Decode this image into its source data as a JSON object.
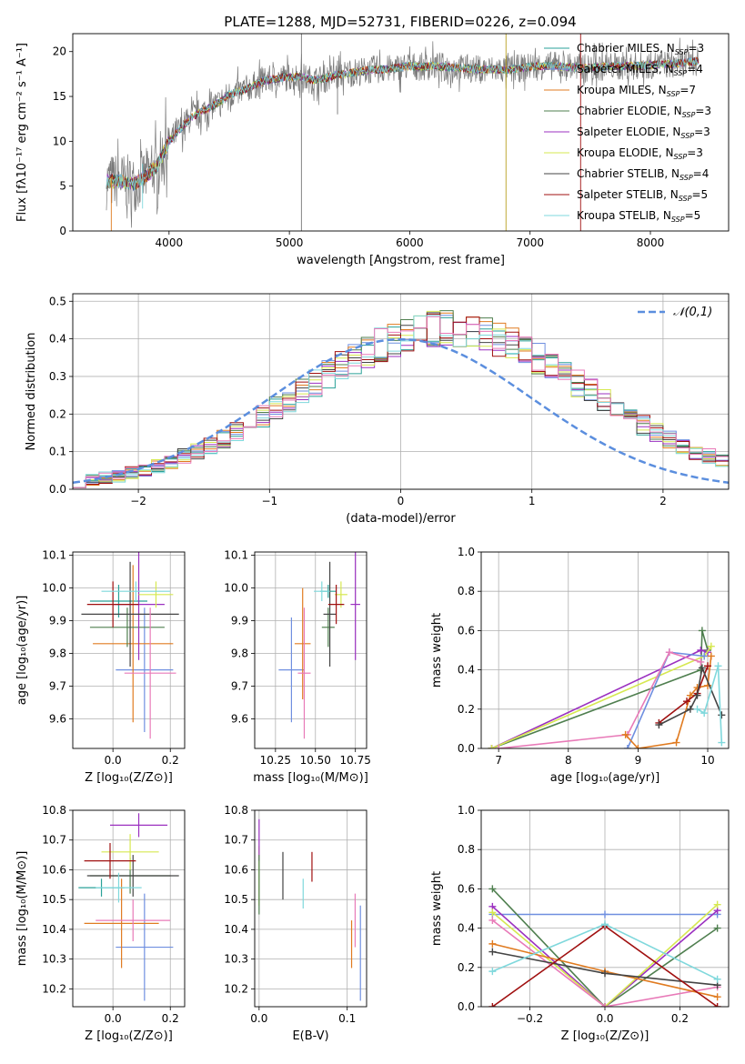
{
  "figure": {
    "title": "PLATE=1288, MJD=52731, FIBERID=0226, z=0.094"
  },
  "colors": {
    "Chabrier MILES": "#2aa198",
    "Salpeter MILES": "#6f8fe0",
    "Kroupa MILES": "#e07b20",
    "Chabrier ELODIE": "#4f7f4f",
    "Salpeter ELODIE": "#9b30c0",
    "Kroupa ELODIE": "#d6e850",
    "Chabrier STELIB": "#444444",
    "Salpeter STELIB": "#a01010",
    "Kroupa STELIB": "#7fd8dc",
    "pink": "#e87ab8",
    "normal": "#5b8ede"
  },
  "chart_data": [
    {
      "id": "spectrum",
      "type": "line",
      "title": "PLATE=1288, MJD=52731, FIBERID=0226, z=0.094",
      "xlabel": "wavelength [Angstrom, rest frame]",
      "ylabel": "Flux [fλ10⁻¹⁷ erg cm⁻² s⁻¹ A⁻¹]",
      "xlim": [
        3200,
        8650
      ],
      "ylim": [
        0,
        22
      ],
      "xticks": [
        4000,
        5000,
        6000,
        7000,
        8000
      ],
      "yticks": [
        0,
        5,
        10,
        15,
        20
      ],
      "grid": false,
      "legend_position": "top-right",
      "legend": [
        {
          "name": "Chabrier MILES, N",
          "sub": "SSP",
          "tail": "=3",
          "color": "#2aa198"
        },
        {
          "name": "Salpeter MILES, N",
          "sub": "SSP",
          "tail": "=4",
          "color": "#6f8fe0"
        },
        {
          "name": "Kroupa MILES, N",
          "sub": "SSP",
          "tail": "=7",
          "color": "#e07b20"
        },
        {
          "name": "Chabrier ELODIE, N",
          "sub": "SSP",
          "tail": "=3",
          "color": "#4f7f4f"
        },
        {
          "name": "Salpeter ELODIE, N",
          "sub": "SSP",
          "tail": "=3",
          "color": "#9b30c0"
        },
        {
          "name": "Kroupa ELODIE, N",
          "sub": "SSP",
          "tail": "=3",
          "color": "#d6e850"
        },
        {
          "name": "Chabrier STELIB, N",
          "sub": "SSP",
          "tail": "=4",
          "color": "#444444"
        },
        {
          "name": "Salpeter STELIB, N",
          "sub": "SSP",
          "tail": "=5",
          "color": "#a01010"
        },
        {
          "name": "Kroupa STELIB, N",
          "sub": "SSP",
          "tail": "=5",
          "color": "#7fd8dc"
        }
      ],
      "continuum": {
        "x": [
          3480,
          3600,
          3700,
          3800,
          3900,
          4000,
          4100,
          4200,
          4300,
          4400,
          4500,
          4600,
          4700,
          4800,
          4900,
          5000,
          5100,
          5200,
          5300,
          5400,
          5500,
          5600,
          5700,
          5800,
          5900,
          6000,
          6100,
          6200,
          6300,
          6400,
          6500,
          6600,
          6700,
          6800,
          6900,
          7000,
          7100,
          7200,
          7300,
          7400,
          7500,
          7600,
          7700,
          7800,
          7900,
          8000,
          8100,
          8200,
          8300,
          8400
        ],
        "y": [
          5.5,
          5.6,
          5.2,
          6.0,
          7.2,
          10.0,
          11.5,
          12.8,
          13.5,
          14.2,
          15.2,
          15.6,
          16.2,
          16.8,
          17.0,
          17.2,
          17.2,
          16.8,
          17.0,
          17.4,
          17.6,
          17.8,
          18.0,
          18.0,
          18.2,
          18.4,
          18.3,
          18.4,
          18.3,
          18.2,
          18.1,
          18.0,
          18.0,
          18.0,
          18.1,
          18.3,
          18.4,
          18.4,
          18.3,
          18.2,
          18.2,
          18.3,
          18.4,
          18.4,
          18.4,
          18.5,
          18.6,
          18.6,
          18.8,
          18.9
        ]
      },
      "spikes": [
        {
          "x": 5100,
          "y0": 0,
          "y1": 22,
          "color": "#777777"
        },
        {
          "x": 6800,
          "y0": 0,
          "y1": 22,
          "color": "#b8a020"
        },
        {
          "x": 7420,
          "y0": 0,
          "y1": 22,
          "color": "#a01010"
        },
        {
          "x": 3520,
          "y0": 0,
          "y1": 6,
          "color": "#e07b20"
        },
        {
          "x": 3780,
          "y0": 2.5,
          "y1": 7.5,
          "color": "#7fd8dc"
        },
        {
          "x": 5400,
          "y0": 13,
          "y1": 19,
          "color": "#777777"
        }
      ]
    },
    {
      "id": "residuals",
      "type": "bar",
      "xlabel": "(data-model)/error",
      "ylabel": "Normed distribution",
      "xlim": [
        -2.5,
        2.5
      ],
      "ylim": [
        0,
        0.52
      ],
      "xticks": [
        -2,
        -1,
        0,
        1,
        2
      ],
      "yticks": [
        0.0,
        0.1,
        0.2,
        0.3,
        0.4,
        0.5
      ],
      "grid": true,
      "legend_position": "top-right",
      "bin_width": 0.1,
      "bin_start": -2.5,
      "base_heights": [
        0.02,
        0.024,
        0.03,
        0.036,
        0.043,
        0.052,
        0.062,
        0.074,
        0.087,
        0.101,
        0.117,
        0.134,
        0.152,
        0.172,
        0.193,
        0.214,
        0.236,
        0.259,
        0.282,
        0.304,
        0.326,
        0.347,
        0.366,
        0.384,
        0.399,
        0.411,
        0.42,
        0.425,
        0.427,
        0.425,
        0.42,
        0.411,
        0.399,
        0.384,
        0.366,
        0.347,
        0.326,
        0.304,
        0.282,
        0.259,
        0.236,
        0.214,
        0.193,
        0.172,
        0.152,
        0.134,
        0.117,
        0.101,
        0.087,
        0.074
      ],
      "normal_curve": {
        "name": "𝒩(0,1)",
        "mean": 0,
        "sigma": 1
      }
    },
    {
      "id": "age-vs-Z",
      "type": "scatter",
      "xlabel": "Z [log₁₀(Z/Z⊙)]",
      "ylabel": "age  [log₁₀(age/yr)]",
      "xlim": [
        -0.14,
        0.25
      ],
      "ylim": [
        9.51,
        10.11
      ],
      "xticks": [
        0.0,
        0.2
      ],
      "yticks": [
        9.6,
        9.7,
        9.8,
        9.9,
        10.0,
        10.1
      ],
      "grid": true,
      "points": [
        {
          "x": 0.02,
          "y": 9.96,
          "xerr": 0.1,
          "yerr": 0.05,
          "color": "#2aa198"
        },
        {
          "x": 0.11,
          "y": 9.75,
          "xerr": 0.1,
          "yerr": 0.19,
          "color": "#6f8fe0"
        },
        {
          "x": 0.07,
          "y": 9.83,
          "xerr": 0.14,
          "yerr": 0.24,
          "color": "#e07b20"
        },
        {
          "x": 0.05,
          "y": 9.88,
          "xerr": 0.13,
          "yerr": 0.06,
          "color": "#4f7f4f"
        },
        {
          "x": 0.09,
          "y": 9.95,
          "xerr": 0.09,
          "yerr": 0.17,
          "color": "#9b30c0"
        },
        {
          "x": 0.15,
          "y": 9.98,
          "xerr": 0.06,
          "yerr": 0.04,
          "color": "#d6e850"
        },
        {
          "x": 0.06,
          "y": 9.92,
          "xerr": 0.17,
          "yerr": 0.16,
          "color": "#444444"
        },
        {
          "x": 0.0,
          "y": 9.95,
          "xerr": 0.09,
          "yerr": 0.07,
          "color": "#a01010"
        },
        {
          "x": 0.08,
          "y": 9.99,
          "xerr": 0.12,
          "yerr": 0.03,
          "color": "#7fd8dc"
        },
        {
          "x": 0.13,
          "y": 9.74,
          "xerr": 0.09,
          "yerr": 0.2,
          "color": "#e87ab8"
        }
      ]
    },
    {
      "id": "age-vs-mass",
      "type": "scatter",
      "xlabel": "mass [log₁₀(M/M⊙)]",
      "ylabel": "",
      "xlim": [
        10.12,
        10.82
      ],
      "ylim": [
        9.51,
        10.11
      ],
      "xticks": [
        10.25,
        10.5,
        10.75
      ],
      "yticks": [
        9.6,
        9.7,
        9.8,
        9.9,
        10.0,
        10.1
      ],
      "grid": true,
      "points": [
        {
          "x": 10.58,
          "y": 9.99,
          "xerr": 0.05,
          "yerr": 0.02,
          "color": "#2aa198"
        },
        {
          "x": 10.35,
          "y": 9.75,
          "xerr": 0.08,
          "yerr": 0.16,
          "color": "#6f8fe0"
        },
        {
          "x": 10.42,
          "y": 9.83,
          "xerr": 0.05,
          "yerr": 0.17,
          "color": "#e07b20"
        },
        {
          "x": 10.58,
          "y": 9.88,
          "xerr": 0.04,
          "yerr": 0.06,
          "color": "#4f7f4f"
        },
        {
          "x": 10.75,
          "y": 9.95,
          "xerr": 0.03,
          "yerr": 0.17,
          "color": "#9b30c0"
        },
        {
          "x": 10.66,
          "y": 9.98,
          "xerr": 0.04,
          "yerr": 0.04,
          "color": "#d6e850"
        },
        {
          "x": 10.59,
          "y": 9.92,
          "xerr": 0.04,
          "yerr": 0.16,
          "color": "#444444"
        },
        {
          "x": 10.63,
          "y": 9.95,
          "xerr": 0.05,
          "yerr": 0.06,
          "color": "#a01010"
        },
        {
          "x": 10.54,
          "y": 9.99,
          "xerr": 0.05,
          "yerr": 0.03,
          "color": "#7fd8dc"
        },
        {
          "x": 10.43,
          "y": 9.74,
          "xerr": 0.04,
          "yerr": 0.2,
          "color": "#e87ab8"
        }
      ]
    },
    {
      "id": "weight-vs-age",
      "type": "line",
      "xlabel": "age  [log₁₀(age/yr)]",
      "ylabel": "mass weight",
      "xlim": [
        6.75,
        10.3
      ],
      "ylim": [
        0.0,
        1.0
      ],
      "xticks": [
        7,
        8,
        9,
        10
      ],
      "yticks": [
        0.0,
        0.2,
        0.4,
        0.6,
        0.8,
        1.0
      ],
      "grid": true,
      "series": [
        {
          "color": "#4f7f4f",
          "x": [
            6.9,
            9.9,
            9.92,
            10.0
          ],
          "y": [
            0.0,
            0.4,
            0.6,
            0.5
          ]
        },
        {
          "color": "#9b30c0",
          "x": [
            6.9,
            9.9,
            10.0
          ],
          "y": [
            0.0,
            0.5,
            0.49
          ]
        },
        {
          "color": "#d6e850",
          "x": [
            6.9,
            9.95,
            10.05
          ],
          "y": [
            0.0,
            0.47,
            0.52
          ]
        },
        {
          "color": "#6f8fe0",
          "x": [
            8.85,
            9.45,
            9.95
          ],
          "y": [
            0.0,
            0.49,
            0.47
          ]
        },
        {
          "color": "#e87ab8",
          "x": [
            7.0,
            8.85,
            9.45,
            9.9
          ],
          "y": [
            0.0,
            0.07,
            0.49,
            0.44
          ]
        },
        {
          "color": "#e07b20",
          "x": [
            8.82,
            9.0,
            9.55,
            9.75,
            9.85,
            10.0,
            10.05
          ],
          "y": [
            0.07,
            0.0,
            0.03,
            0.27,
            0.31,
            0.32,
            0.47
          ]
        },
        {
          "color": "#a01010",
          "x": [
            9.3,
            9.7,
            9.85,
            10.0
          ],
          "y": [
            0.13,
            0.24,
            0.28,
            0.42
          ]
        },
        {
          "color": "#444444",
          "x": [
            9.3,
            9.75,
            9.85,
            9.92,
            10.2
          ],
          "y": [
            0.12,
            0.2,
            0.27,
            0.41,
            0.17
          ]
        },
        {
          "color": "#7fd8dc",
          "x": [
            9.85,
            9.95,
            10.15,
            10.2
          ],
          "y": [
            0.2,
            0.18,
            0.42,
            0.03
          ]
        }
      ]
    },
    {
      "id": "mass-vs-Z",
      "type": "scatter",
      "xlabel": "Z [log₁₀(Z/Z⊙)]",
      "ylabel": "mass [log₁₀(M/M⊙)]",
      "xlim": [
        -0.14,
        0.25
      ],
      "ylim": [
        10.14,
        10.8
      ],
      "xticks": [
        0.0,
        0.2
      ],
      "yticks": [
        10.2,
        10.3,
        10.4,
        10.5,
        10.6,
        10.7,
        10.8
      ],
      "grid": true,
      "points": [
        {
          "x": -0.04,
          "y": 10.54,
          "xerr": 0.08,
          "yerr": 0.03,
          "color": "#2aa198"
        },
        {
          "x": 0.11,
          "y": 10.34,
          "xerr": 0.1,
          "yerr": 0.18,
          "color": "#6f8fe0"
        },
        {
          "x": 0.03,
          "y": 10.42,
          "xerr": 0.13,
          "yerr": 0.15,
          "color": "#e07b20"
        },
        {
          "x": 0.06,
          "y": 10.58,
          "xerr": 0.14,
          "yerr": 0.06,
          "color": "#4f7f4f"
        },
        {
          "x": 0.09,
          "y": 10.75,
          "xerr": 0.1,
          "yerr": 0.04,
          "color": "#9b30c0"
        },
        {
          "x": 0.06,
          "y": 10.66,
          "xerr": 0.1,
          "yerr": 0.06,
          "color": "#d6e850"
        },
        {
          "x": 0.07,
          "y": 10.58,
          "xerr": 0.16,
          "yerr": 0.07,
          "color": "#444444"
        },
        {
          "x": -0.01,
          "y": 10.63,
          "xerr": 0.09,
          "yerr": 0.06,
          "color": "#a01010"
        },
        {
          "x": 0.02,
          "y": 10.54,
          "xerr": 0.08,
          "yerr": 0.05,
          "color": "#7fd8dc"
        },
        {
          "x": 0.07,
          "y": 10.43,
          "xerr": 0.13,
          "yerr": 0.07,
          "color": "#e87ab8"
        }
      ]
    },
    {
      "id": "mass-vs-ebv",
      "type": "scatter",
      "xlabel": "E(B-V)",
      "ylabel": "",
      "xlim": [
        -0.005,
        0.122
      ],
      "ylim": [
        10.14,
        10.8
      ],
      "xticks": [
        0.0,
        0.1
      ],
      "yticks": [
        10.2,
        10.3,
        10.4,
        10.5,
        10.6,
        10.7,
        10.8
      ],
      "grid": true,
      "points": [
        {
          "x": 0.0,
          "y": 10.58,
          "yerr": 0.1,
          "color": "#d6e850"
        },
        {
          "x": 0.0,
          "y": 10.7,
          "yerr": 0.07,
          "color": "#9b30c0"
        },
        {
          "x": 0.0,
          "y": 10.55,
          "yerr": 0.1,
          "color": "#4f7f4f"
        },
        {
          "x": 0.027,
          "y": 10.58,
          "yerr": 0.08,
          "color": "#444444"
        },
        {
          "x": 0.05,
          "y": 10.52,
          "yerr": 0.05,
          "color": "#7fd8dc"
        },
        {
          "x": 0.06,
          "y": 10.61,
          "yerr": 0.05,
          "color": "#a01010"
        },
        {
          "x": 0.105,
          "y": 10.35,
          "yerr": 0.08,
          "color": "#e07b20"
        },
        {
          "x": 0.109,
          "y": 10.43,
          "yerr": 0.09,
          "color": "#e87ab8"
        },
        {
          "x": 0.115,
          "y": 10.32,
          "yerr": 0.16,
          "color": "#6f8fe0"
        }
      ]
    },
    {
      "id": "weight-vs-Z",
      "type": "line",
      "xlabel": "Z [log₁₀(Z/Z⊙)]",
      "ylabel": "mass weight",
      "xlim": [
        -0.33,
        0.33
      ],
      "ylim": [
        0.0,
        1.0
      ],
      "xticks": [
        -0.2,
        0.0,
        0.2
      ],
      "yticks": [
        0.0,
        0.2,
        0.4,
        0.6,
        0.8,
        1.0
      ],
      "grid": true,
      "series": [
        {
          "color": "#6f8fe0",
          "x": [
            -0.3,
            0.0,
            0.3
          ],
          "y": [
            0.47,
            0.47,
            0.47
          ]
        },
        {
          "color": "#4f7f4f",
          "x": [
            -0.3,
            0.0,
            0.3
          ],
          "y": [
            0.6,
            0.0,
            0.4
          ]
        },
        {
          "color": "#9b30c0",
          "x": [
            -0.3,
            0.0,
            0.3
          ],
          "y": [
            0.51,
            0.0,
            0.49
          ]
        },
        {
          "color": "#d6e850",
          "x": [
            -0.3,
            0.0,
            0.3
          ],
          "y": [
            0.48,
            0.0,
            0.52
          ]
        },
        {
          "color": "#e87ab8",
          "x": [
            -0.3,
            0.0,
            0.3
          ],
          "y": [
            0.44,
            0.0,
            0.1
          ]
        },
        {
          "color": "#e07b20",
          "x": [
            -0.3,
            0.0,
            0.3
          ],
          "y": [
            0.32,
            0.18,
            0.05
          ]
        },
        {
          "color": "#444444",
          "x": [
            -0.3,
            0.0,
            0.3
          ],
          "y": [
            0.28,
            0.17,
            0.11
          ]
        },
        {
          "color": "#a01010",
          "x": [
            -0.3,
            0.0,
            0.3
          ],
          "y": [
            0.0,
            0.41,
            0.0
          ]
        },
        {
          "color": "#7fd8dc",
          "x": [
            -0.3,
            0.0,
            0.3
          ],
          "y": [
            0.18,
            0.42,
            0.14
          ]
        }
      ]
    }
  ]
}
